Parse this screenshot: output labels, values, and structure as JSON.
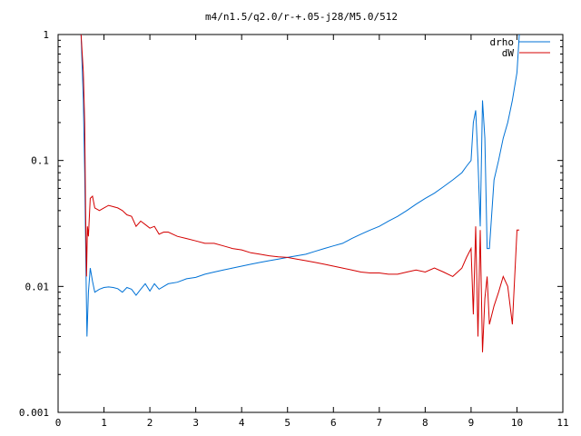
{
  "chart_data": {
    "type": "line",
    "title": "m4/n1.5/q2.0/r-+.05-j28/M5.0/512",
    "xlabel": "",
    "ylabel": "",
    "xlim": [
      0,
      11
    ],
    "ylim": [
      0.001,
      1
    ],
    "y_scale": "log",
    "grid": false,
    "legend_position": "top-right",
    "x_ticks": [
      "0",
      "1",
      "2",
      "3",
      "4",
      "5",
      "6",
      "7",
      "8",
      "9",
      "10",
      "11"
    ],
    "y_ticks": [
      "0.001",
      "0.01",
      "0.1",
      "1"
    ],
    "series": [
      {
        "name": "drho",
        "color": "#0072d6",
        "x": [
          0.5,
          0.55,
          0.58,
          0.61,
          0.63,
          0.66,
          0.7,
          0.75,
          0.8,
          0.9,
          1.0,
          1.1,
          1.2,
          1.3,
          1.4,
          1.5,
          1.6,
          1.7,
          1.8,
          1.9,
          2.0,
          2.1,
          2.2,
          2.4,
          2.6,
          2.8,
          3.0,
          3.2,
          3.4,
          3.6,
          3.8,
          4.0,
          4.2,
          4.4,
          4.6,
          4.8,
          5.0,
          5.2,
          5.4,
          5.6,
          5.8,
          6.0,
          6.2,
          6.4,
          6.6,
          6.8,
          7.0,
          7.2,
          7.4,
          7.6,
          7.8,
          8.0,
          8.2,
          8.4,
          8.6,
          8.8,
          8.9,
          9.0,
          9.05,
          9.1,
          9.15,
          9.2,
          9.25,
          9.3,
          9.35,
          9.4,
          9.5,
          9.6,
          9.7,
          9.8,
          9.9,
          10.0,
          10.05
        ],
        "y": [
          1.0,
          0.3,
          0.08,
          0.012,
          0.004,
          0.009,
          0.014,
          0.011,
          0.009,
          0.0095,
          0.0098,
          0.0099,
          0.0098,
          0.0096,
          0.009,
          0.0098,
          0.0095,
          0.0085,
          0.0095,
          0.0105,
          0.0092,
          0.0105,
          0.0095,
          0.0105,
          0.0108,
          0.0115,
          0.0118,
          0.0125,
          0.013,
          0.0135,
          0.014,
          0.0145,
          0.015,
          0.0155,
          0.016,
          0.0165,
          0.017,
          0.0175,
          0.018,
          0.019,
          0.02,
          0.021,
          0.022,
          0.024,
          0.026,
          0.028,
          0.03,
          0.033,
          0.036,
          0.04,
          0.045,
          0.05,
          0.055,
          0.062,
          0.07,
          0.08,
          0.09,
          0.1,
          0.2,
          0.25,
          0.1,
          0.03,
          0.3,
          0.15,
          0.02,
          0.02,
          0.07,
          0.1,
          0.15,
          0.2,
          0.3,
          0.5,
          1.0
        ]
      },
      {
        "name": "dW",
        "color": "#d40000",
        "x": [
          0.5,
          0.55,
          0.58,
          0.6,
          0.62,
          0.64,
          0.66,
          0.7,
          0.75,
          0.8,
          0.9,
          1.0,
          1.1,
          1.2,
          1.3,
          1.4,
          1.5,
          1.6,
          1.7,
          1.8,
          1.9,
          2.0,
          2.1,
          2.2,
          2.3,
          2.4,
          2.6,
          2.8,
          3.0,
          3.2,
          3.4,
          3.6,
          3.8,
          4.0,
          4.2,
          4.4,
          4.6,
          4.8,
          5.0,
          5.2,
          5.4,
          5.6,
          5.8,
          6.0,
          6.2,
          6.4,
          6.6,
          6.8,
          7.0,
          7.2,
          7.4,
          7.6,
          7.8,
          8.0,
          8.2,
          8.4,
          8.6,
          8.8,
          8.9,
          9.0,
          9.05,
          9.1,
          9.15,
          9.2,
          9.25,
          9.3,
          9.35,
          9.4,
          9.5,
          9.6,
          9.7,
          9.8,
          9.9,
          10.0,
          10.05
        ],
        "y": [
          1.0,
          0.5,
          0.2,
          0.04,
          0.012,
          0.03,
          0.025,
          0.05,
          0.052,
          0.042,
          0.04,
          0.042,
          0.044,
          0.043,
          0.042,
          0.04,
          0.037,
          0.036,
          0.03,
          0.033,
          0.031,
          0.029,
          0.03,
          0.026,
          0.027,
          0.027,
          0.025,
          0.024,
          0.023,
          0.022,
          0.022,
          0.021,
          0.02,
          0.0195,
          0.0185,
          0.018,
          0.0175,
          0.0172,
          0.017,
          0.0165,
          0.016,
          0.0155,
          0.015,
          0.0145,
          0.014,
          0.0135,
          0.013,
          0.0128,
          0.0128,
          0.0125,
          0.0125,
          0.013,
          0.0135,
          0.013,
          0.014,
          0.013,
          0.012,
          0.014,
          0.017,
          0.02,
          0.006,
          0.03,
          0.004,
          0.028,
          0.003,
          0.008,
          0.012,
          0.005,
          0.007,
          0.009,
          0.012,
          0.01,
          0.005,
          0.028,
          0.028
        ]
      }
    ]
  }
}
